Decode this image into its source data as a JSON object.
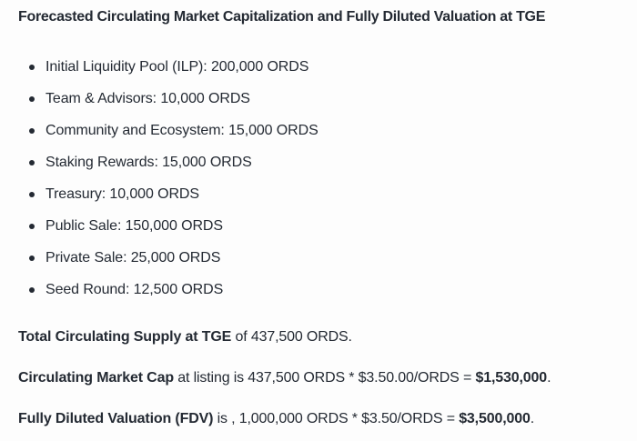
{
  "page": {
    "background_color": "#fdfdfd",
    "text_color": "#242a33"
  },
  "title": "Forecasted Circulating Market Capitalization and Fully Diluted Valuation at TGE",
  "allocations": [
    "Initial Liquidity Pool (ILP): 200,000 ORDS",
    "Team & Advisors: 10,000 ORDS",
    "Community and Ecosystem: 15,000 ORDS",
    "Staking Rewards: 15,000 ORDS",
    "Treasury: 10,000 ORDS",
    "Public Sale: 150,000 ORDS",
    "Private Sale: 25,000 ORDS",
    "Seed Round: 12,500 ORDS"
  ],
  "summary": {
    "total_supply": {
      "bold": "Total Circulating Supply at TGE",
      "rest": " of 437,500 ORDS."
    },
    "market_cap": {
      "bold": "Circulating Market Cap",
      "middle": " at listing is 437,500 ORDS * $3.50.00/ORDS = ",
      "bold_value": "$1,530,000",
      "end": "."
    },
    "fdv": {
      "bold": "Fully Diluted Valuation (FDV)",
      "middle": " is , 1,000,000 ORDS * $3.50/ORDS = ",
      "bold_value": "$3,500,000",
      "end": "."
    }
  }
}
